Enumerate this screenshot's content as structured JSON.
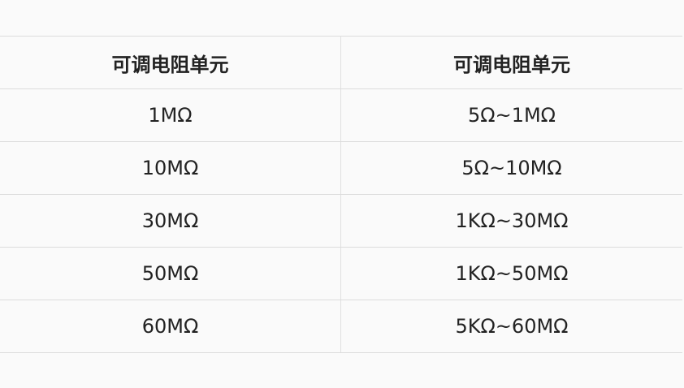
{
  "table": {
    "headers": [
      "可调电阻单元",
      "可调电阻单元"
    ],
    "rows": [
      [
        "1MΩ",
        "5Ω~1MΩ"
      ],
      [
        "10MΩ",
        "5Ω~10MΩ"
      ],
      [
        "30MΩ",
        "1KΩ~30MΩ"
      ],
      [
        "50MΩ",
        "1KΩ~50MΩ"
      ],
      [
        "60MΩ",
        "5KΩ~60MΩ"
      ]
    ]
  }
}
